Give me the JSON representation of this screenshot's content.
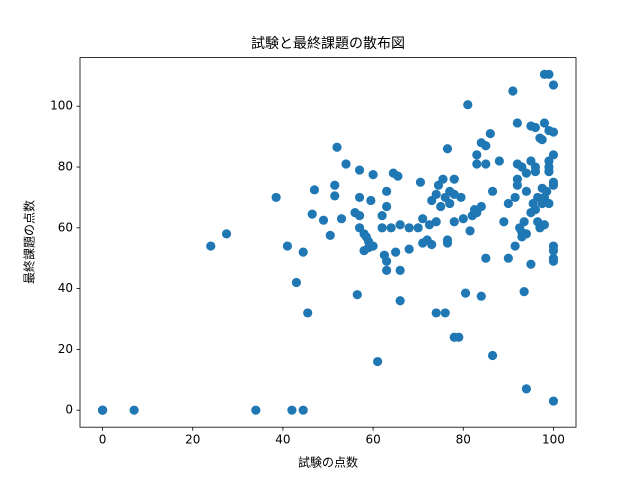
{
  "chart_data": {
    "type": "scatter",
    "title": "試験と最終課題の散布図",
    "x_label": "試験の点数",
    "y_label": "最終課題の点数",
    "color": "#1f77b4",
    "x": [
      0,
      0,
      0,
      7,
      34,
      42,
      44.5,
      24,
      27.5,
      38.5,
      41,
      43,
      44.5,
      45.5,
      46.5,
      47,
      49,
      50.5,
      51.5,
      51.5,
      52,
      53,
      54,
      56,
      56.5,
      57,
      57,
      57,
      57,
      58,
      58,
      58.5,
      59,
      59,
      59.5,
      60,
      60,
      61,
      62,
      62,
      62.5,
      63,
      63,
      63,
      63,
      64,
      64.5,
      65,
      65.5,
      66,
      66,
      66,
      68,
      68,
      70,
      70.5,
      71,
      71,
      72,
      72.5,
      73,
      73,
      74,
      74,
      74,
      74.5,
      75,
      75.5,
      76,
      76,
      76.5,
      76.5,
      76.5,
      77,
      77,
      78,
      78,
      78,
      78,
      79,
      79.5,
      80,
      80.5,
      81,
      81.5,
      82,
      82.5,
      83,
      83,
      83,
      84,
      84,
      84,
      85,
      85,
      85,
      86,
      86.5,
      86.5,
      88,
      89,
      90,
      90,
      91,
      91.5,
      91.5,
      92,
      92,
      92,
      92,
      92.5,
      93,
      93,
      93,
      93.5,
      93.5,
      94,
      94,
      94,
      94,
      95,
      95,
      95,
      95,
      95.5,
      96,
      96,
      96,
      96,
      96.5,
      96.5,
      97,
      97,
      97.5,
      97.5,
      97.5,
      98,
      98,
      98,
      98,
      98.5,
      99,
      99,
      99,
      99,
      99,
      99,
      100,
      100,
      100,
      100,
      100,
      100,
      100,
      100,
      100,
      100
    ],
    "values": [
      0,
      0,
      0,
      0,
      0,
      0,
      0,
      54,
      58,
      70,
      54,
      42,
      52,
      32,
      64.5,
      72.5,
      62.5,
      57.5,
      70.5,
      74,
      86.5,
      63,
      81,
      65,
      38,
      79,
      70,
      64,
      60,
      58,
      52.5,
      57,
      55.5,
      53.5,
      69,
      54,
      77.5,
      16,
      64,
      60,
      51,
      46,
      49,
      67,
      72,
      60,
      78,
      52,
      77,
      46,
      36,
      61,
      53,
      60,
      60,
      75,
      63,
      55,
      56,
      61,
      54.5,
      69,
      71,
      62,
      32,
      74,
      67,
      76,
      70,
      32,
      86,
      56,
      55,
      72,
      68,
      71,
      62,
      24,
      76,
      24,
      70,
      63,
      38.5,
      100.5,
      59,
      64,
      66,
      84,
      81,
      65,
      88,
      37.5,
      67,
      87,
      50,
      81,
      91,
      18,
      72,
      82,
      62,
      68,
      50,
      105,
      70,
      54,
      94.5,
      81,
      76,
      74,
      60,
      58.5,
      57,
      80,
      39,
      62,
      78,
      72,
      7,
      58,
      48,
      93.5,
      82,
      65,
      68,
      66,
      78.5,
      80,
      93,
      70,
      62,
      89.5,
      60,
      89,
      68,
      73,
      110.5,
      94.5,
      70,
      61,
      72,
      110.5,
      78.5,
      80,
      82,
      92,
      68,
      107,
      91.5,
      84,
      74,
      75,
      54,
      52.5,
      50,
      49,
      3
    ],
    "xlim": [
      -5,
      105
    ],
    "ylim": [
      -5.6,
      116
    ],
    "xticks": [
      0,
      20,
      40,
      60,
      80,
      100
    ],
    "yticks": [
      0,
      20,
      40,
      60,
      80,
      100
    ]
  }
}
